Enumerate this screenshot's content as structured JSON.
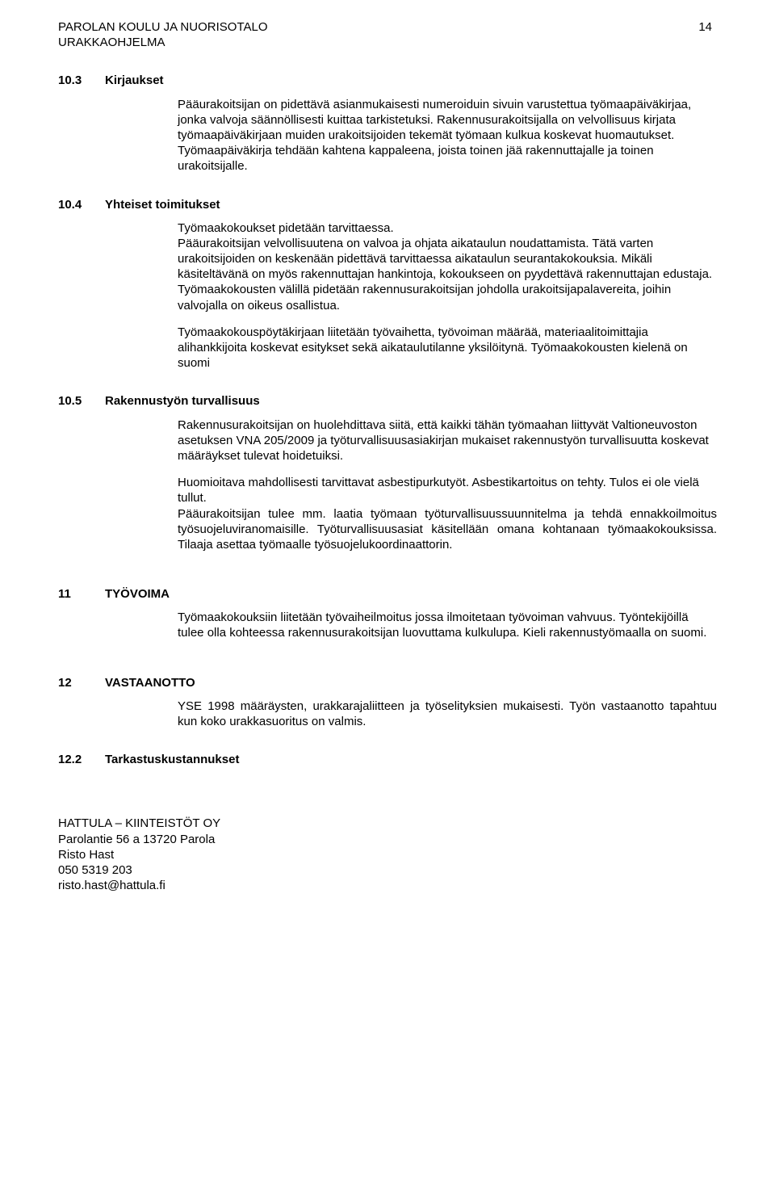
{
  "header": {
    "line1": "PAROLAN KOULU JA NUORISOTALO",
    "line2": "URAKKAOHJELMA",
    "page": "14"
  },
  "s103": {
    "num": "10.3",
    "title": "Kirjaukset",
    "p1": "Pääurakoitsijan on pidettävä asianmukaisesti numeroiduin sivuin varustettua työmaapäiväkirjaa, jonka valvoja säännöllisesti kuittaa tarkistetuksi. Rakennusurakoitsijalla on velvollisuus kirjata työmaapäiväkirjaan muiden urakoitsijoiden tekemät työmaan kulkua koskevat huomautukset. Työmaapäiväkirja tehdään kahtena kappaleena, joista toinen jää rakennuttajalle ja toinen urakoitsijalle."
  },
  "s104": {
    "num": "10.4",
    "title": "Yhteiset toimitukset",
    "p1": "Työmaakokoukset pidetään tarvittaessa.",
    "p2": "Pääurakoitsijan velvollisuutena on valvoa ja ohjata aikataulun noudattamista. Tätä varten urakoitsijoiden on keskenään pidettävä tarvittaessa aikataulun seurantakokouksia. Mikäli käsiteltävänä on myös rakennuttajan hankintoja, kokoukseen on pyydettävä rakennuttajan edustaja. Työmaakokousten välillä pidetään rakennusurakoitsijan johdolla urakoitsijapalavereita, joihin valvojalla on oikeus osallistua.",
    "p3": "Työmaakokouspöytäkirjaan liitetään työvaihetta, työvoiman määrää, materiaalitoimittajia alihankkijoita koskevat esitykset sekä aikataulutilanne yksilöitynä. Työmaakokousten kielenä on suomi"
  },
  "s105": {
    "num": "10.5",
    "title": "Rakennustyön turvallisuus",
    "p1": "Rakennusurakoitsijan on huolehdittava siitä, että kaikki tähän työmaahan liittyvät Valtioneuvoston asetuksen VNA 205/2009 ja työturvallisuusasiakirjan mukaiset rakennustyön turvallisuutta koskevat määräykset tulevat hoidetuiksi.",
    "p2": "Huomioitava mahdollisesti tarvittavat asbestipurkutyöt. Asbestikartoitus on tehty. Tulos ei ole vielä tullut.",
    "p3": "Pääurakoitsijan tulee mm. laatia työmaan työturvallisuussuunnitelma ja tehdä ennakkoilmoitus työsuojeluviranomaisille. Työturvallisuusasiat käsitellään omana kohtanaan työmaakokouksissa. Tilaaja asettaa työmaalle työsuojelukoordinaattorin."
  },
  "s11": {
    "num": "11",
    "title": "TYÖVOIMA",
    "p1": "Työmaakokouksiin liitetään työvaiheilmoitus jossa ilmoitetaan työvoiman vahvuus. Työntekijöillä tulee olla kohteessa rakennusurakoitsijan luovuttama kulkulupa. Kieli rakennustyömaalla on suomi."
  },
  "s12": {
    "num": "12",
    "title": "VASTAANOTTO",
    "p1": "YSE 1998 määräysten, urakkarajaliitteen ja työselityksien mukaisesti. Työn vastaanotto tapahtuu kun koko urakkasuoritus on valmis."
  },
  "s122": {
    "num": "12.2",
    "title": "Tarkastuskustannukset"
  },
  "footer": {
    "l1": "HATTULA – KIINTEISTÖT OY",
    "l2": "Parolantie 56 a 13720 Parola",
    "l3": "Risto Hast",
    "l4": "050 5319 203",
    "l5": "risto.hast@hattula.fi"
  }
}
